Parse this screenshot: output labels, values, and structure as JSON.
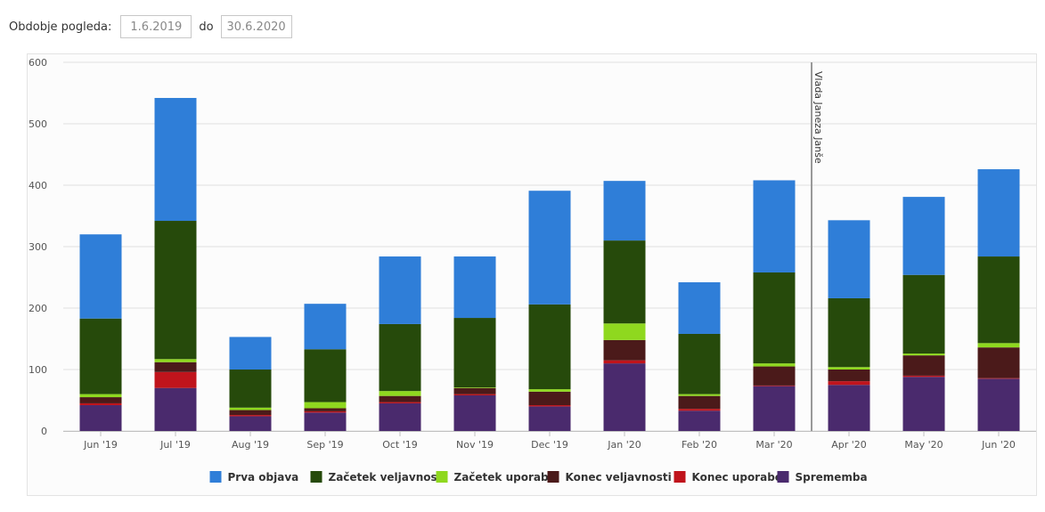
{
  "filter": {
    "label": "Obdobje pogleda:",
    "from_value": "1.6.2019",
    "separator": "do",
    "to_value": "30.6.2020"
  },
  "colors": {
    "Prva objava": "#2f7ed8",
    "Začetek veljavnosti": "#264a0b",
    "Začetek uporabe": "#8fd81f",
    "Konec veljavnosti": "#4b1a1a",
    "Konec uporabe": "#c0141c",
    "Sprememba": "#4a2a6d",
    "annotation_line": "#999999"
  },
  "chart_data": {
    "type": "bar",
    "stacked": true,
    "categories": [
      "Jun '19",
      "Jul '19",
      "Aug '19",
      "Sep '19",
      "Oct '19",
      "Nov '19",
      "Dec '19",
      "Jan '20",
      "Feb '20",
      "Mar '20",
      "Apr '20",
      "May '20",
      "Jun '20"
    ],
    "series": [
      {
        "name": "Sprememba",
        "values": [
          42,
          70,
          24,
          30,
          45,
          58,
          40,
          110,
          33,
          73,
          75,
          88,
          85
        ]
      },
      {
        "name": "Konec uporabe",
        "values": [
          3,
          26,
          2,
          2,
          2,
          2,
          2,
          5,
          3,
          1,
          6,
          2,
          1
        ]
      },
      {
        "name": "Konec veljavnosti",
        "values": [
          10,
          16,
          8,
          5,
          10,
          10,
          22,
          33,
          21,
          31,
          19,
          33,
          50
        ]
      },
      {
        "name": "Začetek uporabe",
        "values": [
          5,
          5,
          4,
          10,
          8,
          1,
          4,
          27,
          3,
          5,
          4,
          3,
          7
        ]
      },
      {
        "name": "Začetek veljavnosti",
        "values": [
          123,
          225,
          62,
          86,
          109,
          113,
          138,
          135,
          98,
          148,
          112,
          128,
          141
        ]
      },
      {
        "name": "Prva objava",
        "values": [
          137,
          200,
          53,
          74,
          110,
          100,
          185,
          97,
          84,
          150,
          127,
          127,
          142
        ]
      }
    ],
    "legend_order": [
      "Prva objava",
      "Začetek veljavnosti",
      "Začetek uporabe",
      "Konec veljavnosti",
      "Konec uporabe",
      "Sprememba"
    ],
    "y_ticks": [
      "0",
      "100",
      "200",
      "300",
      "400",
      "500",
      "600"
    ],
    "ylim": [
      0,
      600
    ],
    "grid": true,
    "legend_position": "bottom-center",
    "annotation": {
      "label": "Vlada Janeza Janše",
      "after_category": "Mar '20"
    }
  }
}
